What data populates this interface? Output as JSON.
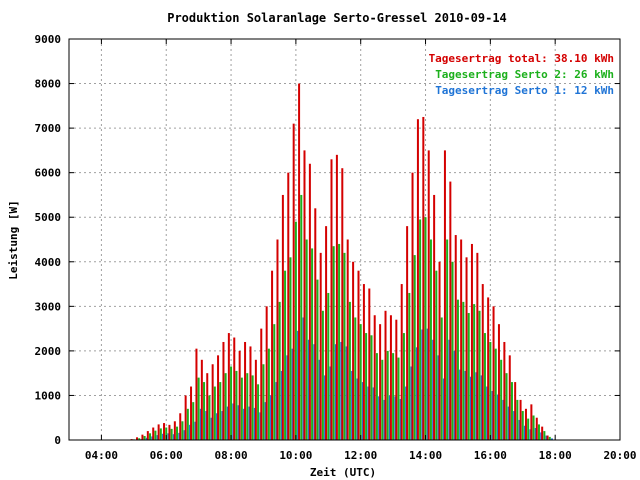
{
  "chart_data": {
    "type": "bar",
    "title": "Produktion Solaranlage Serto-Gressel 2010-09-14",
    "xlabel": "Zeit (UTC)",
    "ylabel": "Leistung [W]",
    "xlim_hours": [
      3.0,
      20.0
    ],
    "ylim": [
      0,
      9000
    ],
    "x_ticks": [
      {
        "hour": 4,
        "label": "04:00"
      },
      {
        "hour": 6,
        "label": "06:00"
      },
      {
        "hour": 8,
        "label": "08:00"
      },
      {
        "hour": 10,
        "label": "10:00"
      },
      {
        "hour": 12,
        "label": "12:00"
      },
      {
        "hour": 14,
        "label": "14:00"
      },
      {
        "hour": 16,
        "label": "16:00"
      },
      {
        "hour": 18,
        "label": "18:00"
      },
      {
        "hour": 20,
        "label": "20:00"
      }
    ],
    "y_ticks": [
      0,
      1000,
      2000,
      3000,
      4000,
      5000,
      6000,
      7000,
      8000,
      9000
    ],
    "grid": true,
    "grid_style": "dotted",
    "legend_placement": "top-right",
    "colors": {
      "total": "#d40000",
      "serto2": "#1cb01c",
      "serto1": "#1f74d6"
    },
    "legend": [
      {
        "key": "total",
        "text": "Tagesertrag total: 38.10 kWh"
      },
      {
        "key": "serto2",
        "text": "Tagesertrag Serto 2: 26 kWh"
      },
      {
        "key": "serto1",
        "text": "Tagesertrag Serto 1: 12 kWh"
      }
    ],
    "series_order": [
      "total",
      "serto2",
      "serto1"
    ],
    "x": [
      "05:00",
      "05:10",
      "05:20",
      "05:30",
      "05:40",
      "05:50",
      "06:00",
      "06:10",
      "06:20",
      "06:30",
      "06:40",
      "06:50",
      "07:00",
      "07:10",
      "07:20",
      "07:30",
      "07:40",
      "07:50",
      "08:00",
      "08:10",
      "08:20",
      "08:30",
      "08:40",
      "08:50",
      "09:00",
      "09:10",
      "09:20",
      "09:30",
      "09:40",
      "09:50",
      "10:00",
      "10:10",
      "10:20",
      "10:30",
      "10:40",
      "10:50",
      "11:00",
      "11:10",
      "11:20",
      "11:30",
      "11:40",
      "11:50",
      "12:00",
      "12:10",
      "12:20",
      "12:30",
      "12:40",
      "12:50",
      "13:00",
      "13:10",
      "13:20",
      "13:30",
      "13:40",
      "13:50",
      "14:00",
      "14:10",
      "14:20",
      "14:30",
      "14:40",
      "14:50",
      "15:00",
      "15:10",
      "15:20",
      "15:30",
      "15:40",
      "15:50",
      "16:00",
      "16:10",
      "16:20",
      "16:30",
      "16:40",
      "16:50",
      "17:00",
      "17:10",
      "17:20",
      "17:30",
      "17:40",
      "17:50"
    ],
    "total": [
      20,
      60,
      120,
      200,
      280,
      350,
      380,
      340,
      420,
      600,
      1000,
      1200,
      2050,
      1800,
      1500,
      1700,
      1900,
      2200,
      2400,
      2300,
      2000,
      2200,
      2100,
      1800,
      2500,
      3000,
      3800,
      4500,
      5500,
      6000,
      7100,
      8000,
      6500,
      6200,
      5200,
      4200,
      4800,
      6300,
      6400,
      6100,
      4500,
      4000,
      3800,
      3500,
      3400,
      2800,
      2600,
      2900,
      2800,
      2700,
      3500,
      4800,
      6000,
      7200,
      7250,
      6500,
      5500,
      4000,
      6500,
      5800,
      4600,
      4500,
      4100,
      4400,
      4200,
      3500,
      3200,
      3000,
      2600,
      2200,
      1900,
      1300,
      900,
      700,
      800,
      500,
      300,
      100
    ],
    "serto2": [
      15,
      40,
      90,
      150,
      210,
      260,
      280,
      250,
      300,
      420,
      700,
      850,
      1400,
      1300,
      1000,
      1200,
      1300,
      1500,
      1650,
      1550,
      1400,
      1500,
      1450,
      1250,
      1700,
      2050,
      2600,
      3100,
      3800,
      4100,
      4900,
      5500,
      4500,
      4300,
      3600,
      2900,
      3300,
      4350,
      4400,
      4200,
      3100,
      2750,
      2600,
      2400,
      2350,
      1950,
      1800,
      2000,
      1950,
      1850,
      2400,
      3300,
      4150,
      4950,
      5000,
      4500,
      3800,
      2750,
      4500,
      4000,
      3150,
      3100,
      2850,
      3050,
      2900,
      2400,
      2200,
      2050,
      1800,
      1500,
      1300,
      900,
      650,
      480,
      550,
      350,
      200,
      70
    ],
    "serto1": [
      5,
      20,
      50,
      80,
      110,
      140,
      150,
      130,
      160,
      220,
      340,
      410,
      700,
      650,
      500,
      600,
      650,
      750,
      820,
      780,
      700,
      750,
      720,
      620,
      850,
      1000,
      1300,
      1550,
      1900,
      2050,
      2450,
      2750,
      2250,
      2150,
      1800,
      1450,
      1650,
      2150,
      2200,
      2100,
      1550,
      1380,
      1300,
      1200,
      1180,
      980,
      900,
      1000,
      980,
      920,
      1200,
      1650,
      2080,
      2480,
      2500,
      2250,
      1900,
      1380,
      2250,
      2000,
      1580,
      1550,
      1420,
      1520,
      1450,
      1200,
      1100,
      1020,
      900,
      750,
      650,
      450,
      320,
      240,
      270,
      170,
      100,
      35
    ]
  }
}
